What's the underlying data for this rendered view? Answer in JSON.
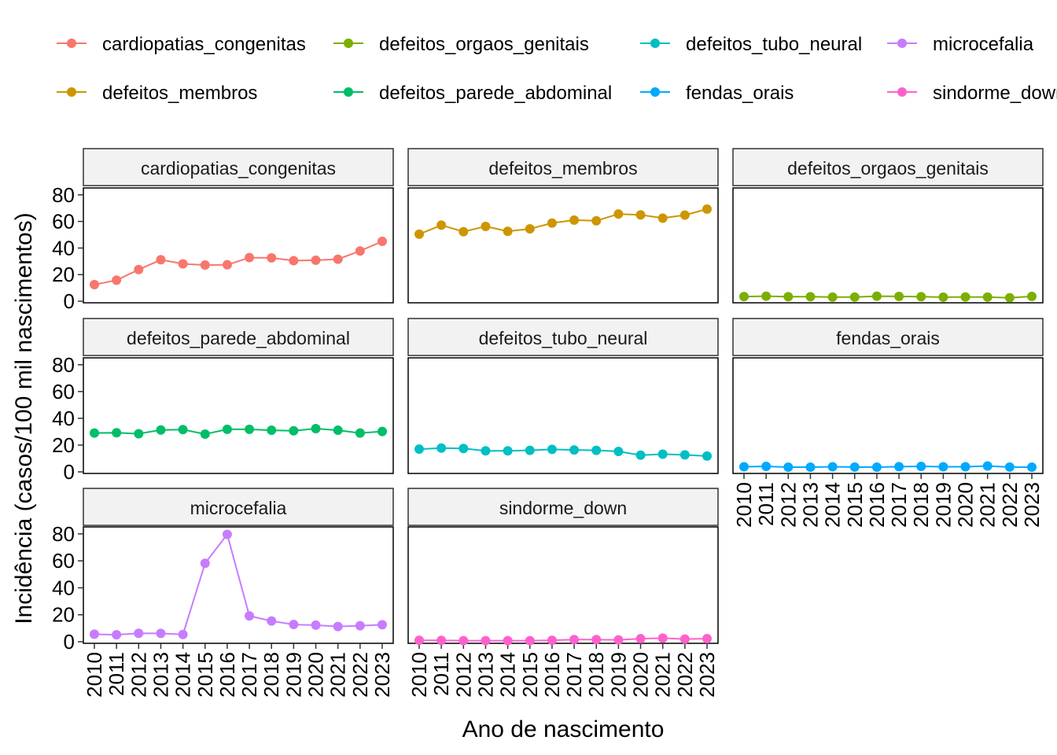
{
  "chart_data": {
    "type": "line",
    "x": [
      "2010",
      "2011",
      "2012",
      "2013",
      "2014",
      "2015",
      "2016",
      "2017",
      "2018",
      "2019",
      "2020",
      "2021",
      "2022",
      "2023"
    ],
    "xlabel": "Ano de nascimento",
    "ylabel": "Incidência (casos/100 mil nascimentos)",
    "ylim": [
      0,
      84
    ],
    "yticks": [
      0,
      20,
      40,
      60,
      80
    ],
    "legend_position": "top",
    "series": [
      {
        "name": "cardiopatias_congenitas",
        "color": "#F8766D",
        "values": [
          12.5,
          15.8,
          23.8,
          31.2,
          28.1,
          27.2,
          27.4,
          32.8,
          32.6,
          30.5,
          30.8,
          31.6,
          37.8,
          45.0
        ]
      },
      {
        "name": "defeitos_membros",
        "color": "#CD9600",
        "values": [
          50.4,
          57.2,
          52.3,
          56.3,
          52.6,
          54.4,
          58.8,
          61.0,
          60.5,
          65.6,
          64.9,
          62.5,
          64.8,
          69.3
        ]
      },
      {
        "name": "defeitos_orgaos_genitais",
        "color": "#7CAE00",
        "values": [
          3.5,
          3.8,
          3.4,
          3.4,
          3.1,
          3.1,
          3.8,
          3.6,
          3.4,
          3.0,
          3.2,
          3.1,
          2.6,
          3.6
        ]
      },
      {
        "name": "defeitos_parede_abdominal",
        "color": "#00BE67",
        "values": [
          29.0,
          29.2,
          28.5,
          31.3,
          31.6,
          28.2,
          31.8,
          31.8,
          31.1,
          30.7,
          32.3,
          31.1,
          29.0,
          30.2
        ]
      },
      {
        "name": "defeitos_tubo_neural",
        "color": "#00BFC4",
        "values": [
          17.0,
          17.8,
          17.5,
          15.7,
          15.7,
          16.1,
          16.8,
          16.4,
          16.1,
          15.3,
          12.5,
          13.2,
          12.7,
          11.8
        ]
      },
      {
        "name": "fendas_orais",
        "color": "#00A9FF",
        "values": [
          3.8,
          4.1,
          3.5,
          3.5,
          3.8,
          3.6,
          3.5,
          3.9,
          4.1,
          3.8,
          3.8,
          4.4,
          3.6,
          3.5
        ]
      },
      {
        "name": "microcefalia",
        "color": "#C77CFF",
        "values": [
          5.6,
          5.2,
          6.3,
          6.2,
          5.4,
          58.2,
          79.6,
          19.2,
          15.4,
          12.8,
          12.3,
          11.3,
          11.9,
          12.6
        ]
      },
      {
        "name": "sindorme_down",
        "color": "#FF61CC",
        "values": [
          1.1,
          1.0,
          0.8,
          0.8,
          0.8,
          0.8,
          1.1,
          1.6,
          1.6,
          1.4,
          2.3,
          2.7,
          2.0,
          2.3
        ]
      }
    ],
    "legend_order": [
      "cardiopatias_congenitas",
      "defeitos_orgaos_genitais",
      "defeitos_tubo_neural",
      "microcefalia",
      "defeitos_membros",
      "defeitos_parede_abdominal",
      "fendas_orais",
      "sindorme_down"
    ]
  }
}
